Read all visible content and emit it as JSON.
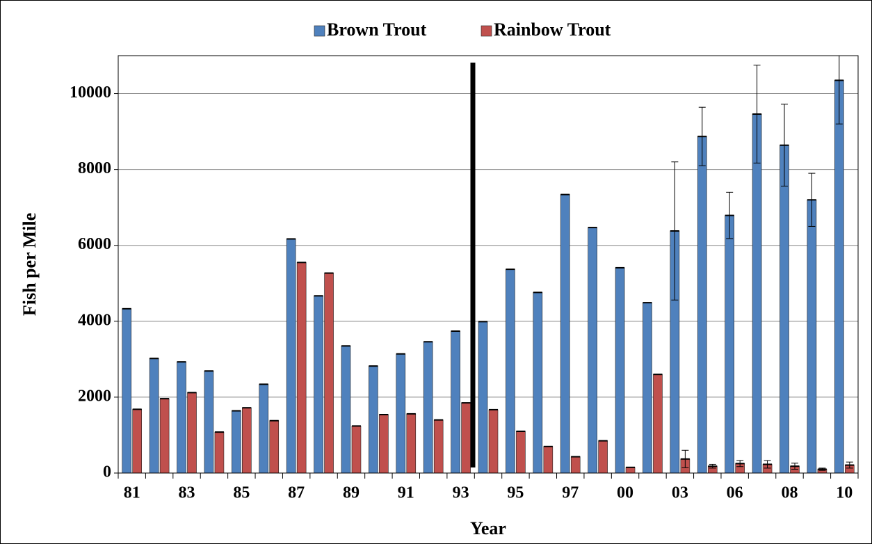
{
  "chart_data": {
    "type": "bar",
    "x_label": "Year",
    "y_label": "Fish per Mile",
    "categories": [
      "81",
      null,
      "83",
      null,
      "85",
      null,
      "87",
      null,
      "89",
      null,
      "91",
      null,
      "93",
      null,
      "95",
      null,
      "97",
      null,
      "00",
      null,
      "03",
      null,
      "06",
      null,
      "08",
      null,
      "10"
    ],
    "series": [
      {
        "name": "Brown Trout",
        "color": "#4f81bd",
        "values": [
          4330,
          3020,
          2930,
          2690,
          1640,
          2340,
          6170,
          4670,
          3350,
          2820,
          3140,
          3460,
          3740,
          3990,
          5370,
          4760,
          7340,
          6470,
          5410,
          4490,
          6380,
          8870,
          6790,
          9460,
          8640,
          7200,
          10350
        ],
        "errors": [
          null,
          null,
          null,
          null,
          null,
          null,
          null,
          null,
          null,
          null,
          null,
          null,
          null,
          null,
          null,
          null,
          null,
          null,
          null,
          null,
          1820,
          770,
          610,
          1290,
          1080,
          700,
          1150
        ]
      },
      {
        "name": "Rainbow Trout",
        "color": "#c0504d",
        "values": [
          1680,
          1960,
          2120,
          1080,
          1720,
          1380,
          5550,
          5270,
          1240,
          1540,
          1560,
          1400,
          1850,
          1670,
          1100,
          700,
          430,
          850,
          150,
          2600,
          370,
          180,
          250,
          230,
          180,
          100,
          210
        ],
        "errors": [
          null,
          null,
          null,
          null,
          null,
          null,
          null,
          null,
          null,
          null,
          null,
          null,
          null,
          null,
          null,
          null,
          null,
          null,
          null,
          null,
          230,
          50,
          80,
          100,
          80,
          30,
          80
        ]
      }
    ],
    "ylim": [
      0,
      11000
    ],
    "yticks": [
      0,
      2000,
      4000,
      6000,
      8000,
      10000
    ],
    "grid": true,
    "legend": "top"
  }
}
